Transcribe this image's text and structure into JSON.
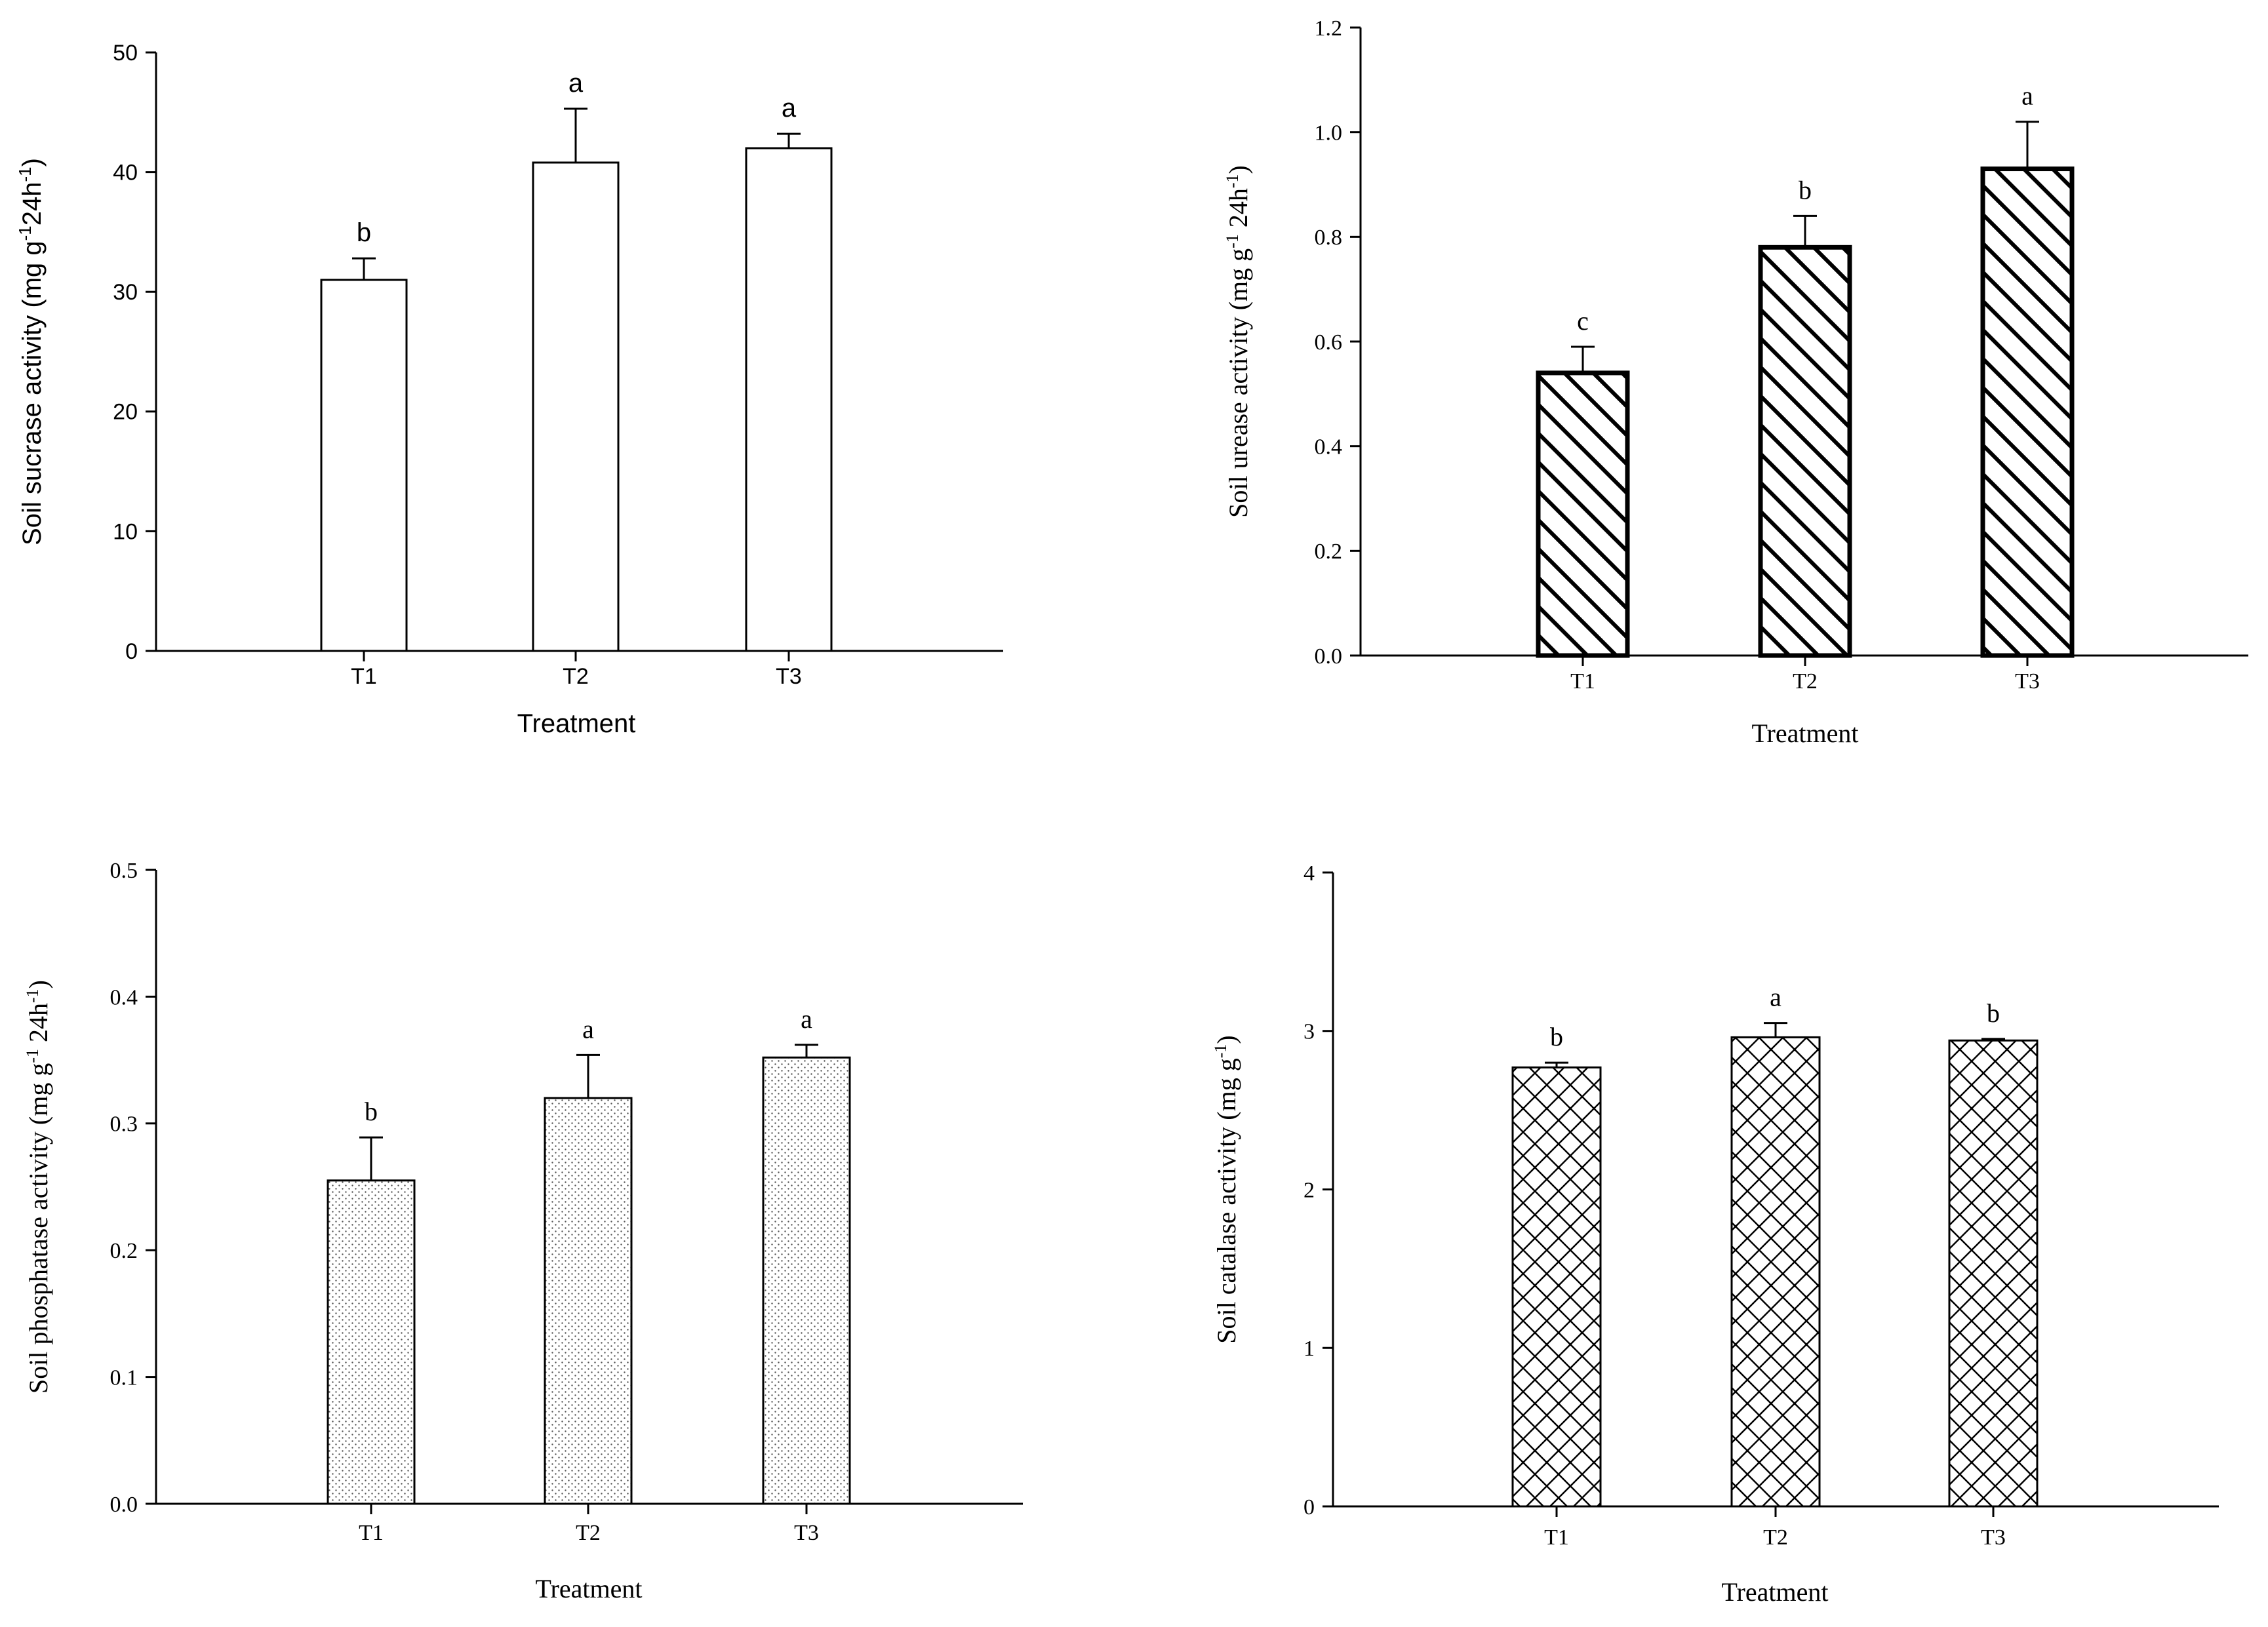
{
  "chart_data": [
    {
      "type": "bar",
      "id": "sucrase",
      "title": "",
      "xlabel": "Treatment",
      "ylabel_parts": [
        "Soil sucrase activity (mg g",
        "-1",
        "24h",
        "-1",
        ")"
      ],
      "categories": [
        "T1",
        "T2",
        "T3"
      ],
      "values": [
        31.0,
        40.8,
        42.0
      ],
      "errors": [
        1.8,
        4.5,
        1.2
      ],
      "significance": [
        "b",
        "a",
        "a"
      ],
      "ylim": [
        0,
        50
      ],
      "yticks": [
        "0",
        "10",
        "20",
        "30",
        "40",
        "50"
      ],
      "fill": "none",
      "font": "sans"
    },
    {
      "type": "bar",
      "id": "urease",
      "title": "",
      "xlabel": "Treatment",
      "ylabel_parts": [
        "Soil urease activity (mg g",
        "-1",
        " 24h",
        "-1",
        ")"
      ],
      "categories": [
        "T1",
        "T2",
        "T3"
      ],
      "values": [
        0.54,
        0.78,
        0.93
      ],
      "errors": [
        0.05,
        0.06,
        0.09
      ],
      "significance": [
        "c",
        "b",
        "a"
      ],
      "ylim": [
        0,
        1.2
      ],
      "yticks": [
        "0.0",
        "0.2",
        "0.4",
        "0.6",
        "0.8",
        "1.0",
        "1.2"
      ],
      "fill": "diagonal-hatch",
      "font": "serif"
    },
    {
      "type": "bar",
      "id": "phosphatase",
      "title": "",
      "xlabel": "Treatment",
      "ylabel_parts": [
        "Soil phosphatase activity (mg g",
        "-1",
        " 24h",
        "-1",
        ")"
      ],
      "categories": [
        "T1",
        "T2",
        "T3"
      ],
      "values": [
        0.255,
        0.32,
        0.352
      ],
      "errors": [
        0.034,
        0.034,
        0.01
      ],
      "significance": [
        "b",
        "a",
        "a"
      ],
      "ylim": [
        0,
        0.5
      ],
      "yticks": [
        "0.0",
        "0.1",
        "0.2",
        "0.3",
        "0.4",
        "0.5"
      ],
      "fill": "dots",
      "font": "serif"
    },
    {
      "type": "bar",
      "id": "catalase",
      "title": "",
      "xlabel": "Treatment",
      "ylabel_parts": [
        "Soil catalase activity (mg g",
        "-1",
        ")"
      ],
      "categories": [
        "T1",
        "T2",
        "T3"
      ],
      "values": [
        2.77,
        2.96,
        2.94
      ],
      "errors": [
        0.03,
        0.09,
        0.01
      ],
      "significance": [
        "b",
        "a",
        "b"
      ],
      "ylim": [
        0,
        4
      ],
      "yticks": [
        "0",
        "1",
        "2",
        "3",
        "4"
      ],
      "fill": "crosshatch",
      "font": "serif"
    }
  ]
}
